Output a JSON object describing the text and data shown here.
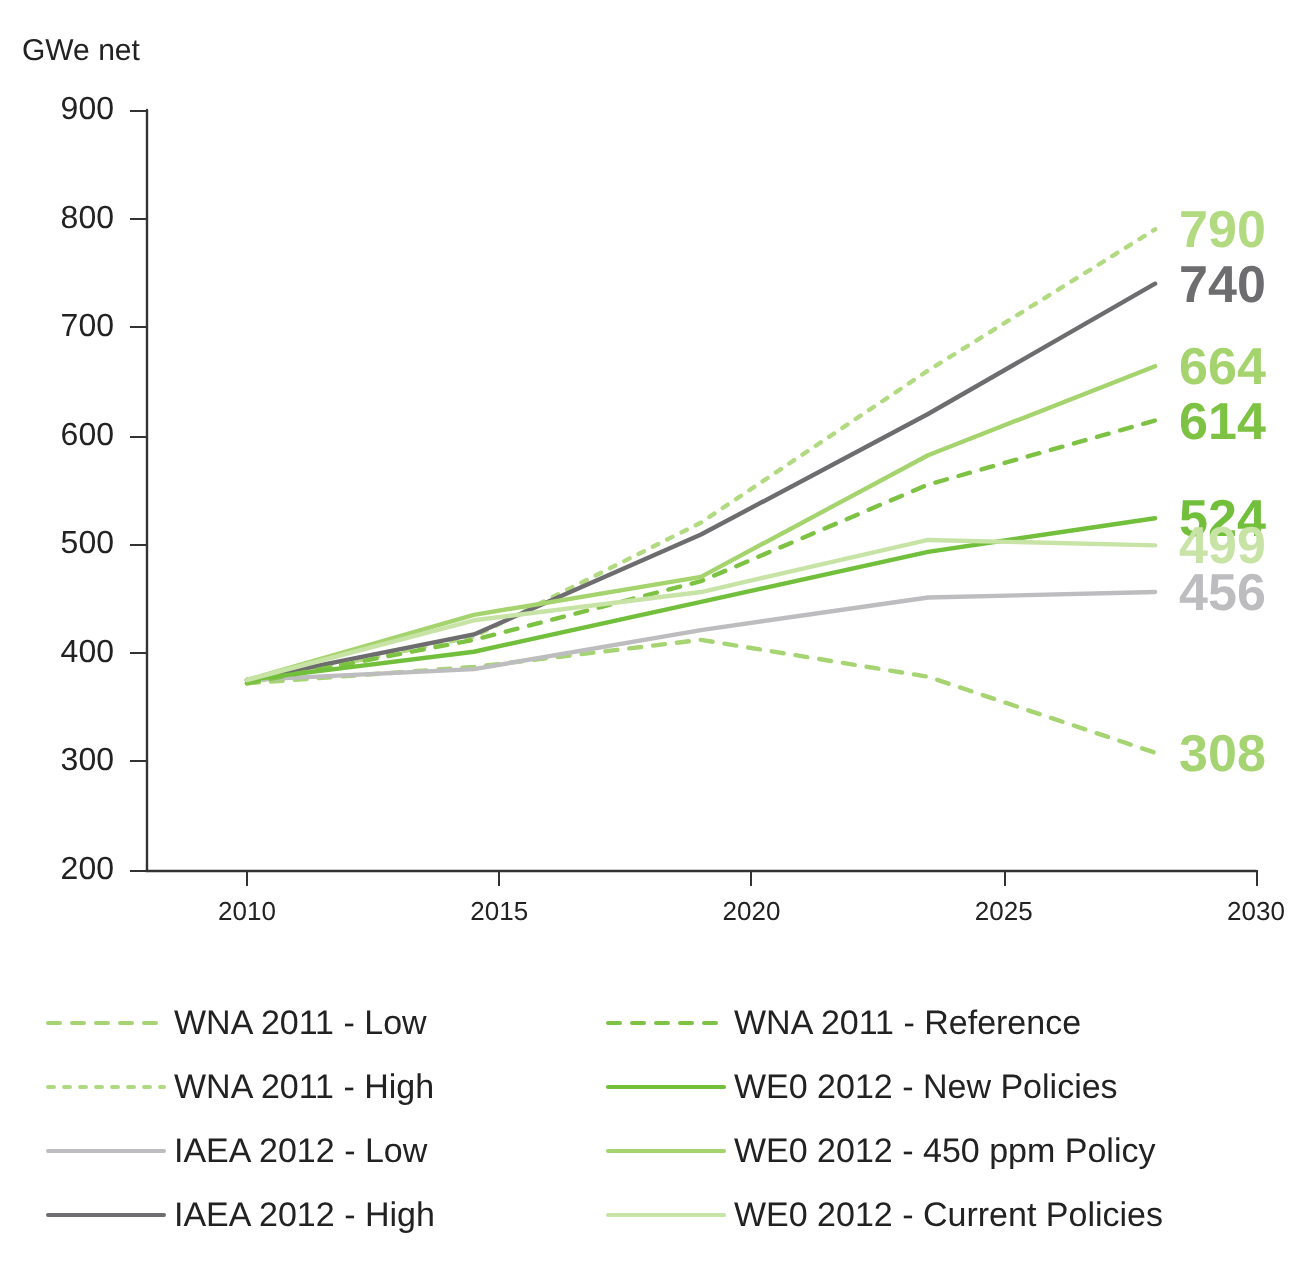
{
  "chart_data": {
    "type": "line",
    "ylabel": "GWe net",
    "x": [
      2010,
      2014.5,
      2019,
      2023.5,
      2028
    ],
    "xlim": [
      2008,
      2030
    ],
    "xticks": [
      2010,
      2015,
      2020,
      2025,
      2030
    ],
    "ylim": [
      200,
      900
    ],
    "yticks": [
      200,
      300,
      400,
      500,
      600,
      700,
      800,
      900
    ],
    "grid": false,
    "legend": "bottom",
    "marker": "none",
    "series": [
      {
        "name": "WNA 2011 - Low",
        "color": "#a6d472",
        "line_style": "dashed",
        "values": [
          372,
          387,
          412,
          378,
          308
        ],
        "value_labels": [
          null,
          null,
          null,
          null,
          "308"
        ]
      },
      {
        "name": "WNA 2011 - High",
        "color": "#b2da80",
        "line_style": "dotted",
        "values": [
          372,
          415,
          520,
          660,
          790
        ],
        "value_labels": [
          null,
          null,
          null,
          null,
          "790"
        ]
      },
      {
        "name": "IAEA 2012 - Low",
        "color": "#bdbdbf",
        "line_style": "solid",
        "values": [
          375,
          385,
          421,
          451,
          456
        ],
        "value_labels": [
          null,
          null,
          null,
          null,
          "456"
        ]
      },
      {
        "name": "IAEA 2012 - High",
        "color": "#6d6d70",
        "line_style": "solid",
        "values": [
          375,
          417,
          509,
          620,
          740
        ],
        "value_labels": [
          null,
          null,
          null,
          null,
          "740"
        ]
      },
      {
        "name": "WNA 2011 - Reference",
        "color": "#7dc242",
        "line_style": "dashed",
        "values": [
          372,
          412,
          466,
          555,
          614
        ],
        "value_labels": [
          null,
          null,
          null,
          null,
          "614"
        ]
      },
      {
        "name": "WE0 2012 - New Policies",
        "color": "#72bf3c",
        "line_style": "solid",
        "values": [
          375,
          401,
          447,
          493,
          524
        ],
        "value_labels": [
          null,
          null,
          null,
          null,
          "524"
        ]
      },
      {
        "name": "WE0 2012 - 450 ppm Policy",
        "color": "#a5d46e",
        "line_style": "solid",
        "values": [
          375,
          435,
          470,
          582,
          664
        ],
        "value_labels": [
          null,
          null,
          null,
          null,
          "664"
        ]
      },
      {
        "name": "WE0 2012 - Current Policies",
        "color": "#c8e3a6",
        "line_style": "solid",
        "values": [
          375,
          430,
          456,
          504,
          499
        ],
        "value_labels": [
          null,
          null,
          null,
          null,
          "499"
        ]
      }
    ]
  }
}
